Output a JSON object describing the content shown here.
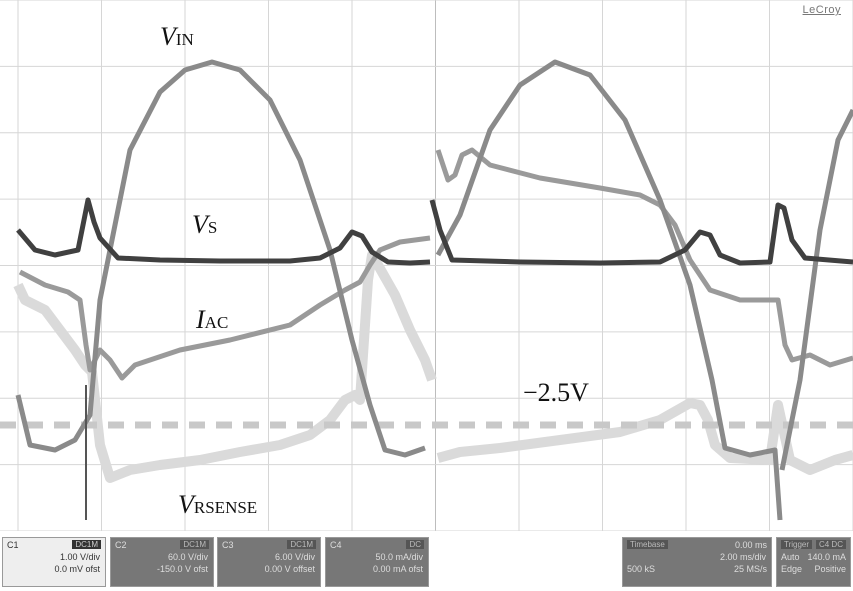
{
  "brand": "LeCroy",
  "labels": {
    "vin": {
      "main": "V",
      "sub": "IN"
    },
    "vs": {
      "main": "V",
      "sub": "S"
    },
    "iac": {
      "main": "I",
      "sub": "AC"
    },
    "vrsense": {
      "main": "V",
      "sub": "RSENSE"
    },
    "threshold": "−2.5V"
  },
  "channels": [
    {
      "id": "C1",
      "tag": "DC1M",
      "line1": "1.00 V/div",
      "line2": "0.0 mV ofst"
    },
    {
      "id": "C2",
      "tag": "DC1M",
      "line1": "60.0 V/div",
      "line2": "-150.0 V ofst"
    },
    {
      "id": "C3",
      "tag": "DC1M",
      "line1": "6.00 V/div",
      "line2": "0.00 V offset"
    },
    {
      "id": "C4",
      "tag": "DC",
      "line1": "50.0 mA/div",
      "line2": "0.00 mA ofst"
    }
  ],
  "timebase": {
    "label": "Timebase",
    "value": "0.00 ms",
    "rate": "2.00 ms/div",
    "samples": "500 kS",
    "srate": "25 MS/s"
  },
  "trigger": {
    "label": "Trigger",
    "tag": "C4 DC",
    "mode": "Auto",
    "level": "140.0 mA",
    "type": "Edge",
    "slope": "Positive"
  },
  "colors": {
    "vin": "#8a8a8a",
    "vs": "#404040",
    "iac": "#9a9a9a",
    "vrsense": "#dadada",
    "threshold": "#c8c8c8",
    "grid": "#d6d6d6"
  }
}
